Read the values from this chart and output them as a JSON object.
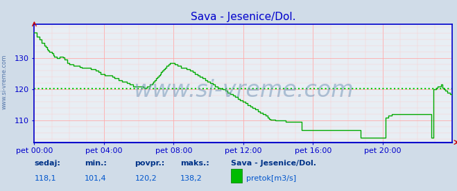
{
  "title": "Sava - Jesenice/Dol.",
  "title_color": "#0000cc",
  "title_fontsize": 11,
  "bg_color": "#d0dce8",
  "plot_bg_color": "#e8eef4",
  "grid_color_major": "#ffaaaa",
  "grid_color_minor": "#ffcccc",
  "line_color": "#00aa00",
  "line_width": 1.0,
  "avg_line_color": "#00cc00",
  "avg_value": 120.2,
  "ylim": [
    103,
    141
  ],
  "yticks": [
    110,
    120,
    130
  ],
  "ylabel_fontsize": 8,
  "xlabel_fontsize": 8,
  "xtick_labels": [
    "pet 00:00",
    "pet 04:00",
    "pet 08:00",
    "pet 12:00",
    "pet 16:00",
    "pet 20:00"
  ],
  "axis_color": "#0000cc",
  "watermark": "www.si-vreme.com",
  "watermark_color": "#7799bb",
  "watermark_alpha": 0.55,
  "watermark_fontsize": 24,
  "footer_labels": [
    "sedaj:",
    "min.:",
    "povpr.:",
    "maks.:"
  ],
  "footer_values": [
    "118,1",
    "101,4",
    "120,2",
    "138,2"
  ],
  "footer_station": "Sava - Jesenice/Dol.",
  "footer_legend_label": "pretok[m3/s]",
  "footer_color": "#0055cc",
  "footer_label_color": "#003388",
  "legend_color": "#00bb00",
  "sidebar_text": "www.si-vreme.com",
  "sidebar_color": "#5577aa",
  "sidebar_fontsize": 6,
  "flow_data": [
    138.2,
    138.2,
    137.0,
    137.0,
    136.0,
    136.0,
    135.0,
    135.0,
    134.0,
    133.5,
    133.0,
    132.5,
    132.0,
    132.0,
    131.5,
    131.0,
    130.5,
    130.5,
    130.0,
    130.0,
    130.5,
    130.5,
    130.5,
    130.2,
    129.5,
    129.5,
    128.5,
    128.5,
    128.0,
    128.0,
    128.0,
    127.5,
    127.5,
    127.5,
    127.5,
    127.5,
    127.2,
    127.2,
    127.0,
    127.0,
    127.0,
    127.0,
    127.0,
    127.0,
    127.0,
    126.5,
    126.5,
    126.5,
    126.5,
    126.0,
    126.0,
    125.5,
    125.5,
    125.0,
    125.0,
    125.0,
    124.5,
    124.5,
    124.5,
    124.5,
    124.5,
    124.5,
    124.0,
    124.0,
    123.5,
    123.5,
    123.5,
    123.0,
    123.0,
    123.0,
    122.5,
    122.5,
    122.5,
    122.5,
    122.0,
    122.0,
    121.5,
    121.5,
    121.5,
    121.0,
    121.0,
    121.0,
    121.0,
    121.0,
    121.0,
    121.0,
    121.0,
    120.5,
    120.5,
    120.5,
    121.0,
    121.0,
    121.5,
    121.5,
    122.0,
    122.5,
    123.0,
    123.5,
    124.0,
    124.5,
    125.0,
    125.5,
    126.0,
    126.5,
    127.0,
    127.5,
    127.5,
    128.0,
    128.5,
    128.5,
    128.5,
    128.5,
    128.0,
    128.0,
    127.5,
    127.5,
    127.5,
    127.0,
    127.0,
    127.0,
    127.0,
    126.5,
    126.5,
    126.5,
    126.0,
    126.0,
    125.5,
    125.5,
    125.0,
    125.0,
    124.5,
    124.5,
    124.0,
    124.0,
    123.5,
    123.5,
    123.0,
    123.0,
    122.5,
    122.5,
    122.0,
    122.0,
    121.5,
    121.5,
    121.0,
    121.0,
    120.5,
    120.5,
    120.2,
    120.2,
    120.0,
    120.0,
    119.5,
    119.5,
    119.0,
    119.0,
    118.5,
    118.5,
    118.0,
    118.0,
    117.5,
    117.5,
    117.0,
    117.0,
    116.5,
    116.5,
    116.0,
    116.0,
    115.5,
    115.5,
    115.0,
    115.0,
    114.5,
    114.5,
    114.0,
    114.0,
    113.5,
    113.5,
    113.0,
    113.0,
    112.5,
    112.5,
    112.0,
    112.0,
    111.5,
    111.5,
    111.0,
    110.5,
    110.2,
    110.2,
    110.2,
    110.2,
    110.0,
    110.0,
    110.0,
    110.0,
    110.0,
    110.0,
    110.0,
    110.0,
    109.5,
    109.5,
    109.5,
    109.5,
    109.5,
    109.5,
    109.5,
    109.5,
    109.5,
    109.5,
    109.5,
    109.5,
    109.5,
    107.0,
    107.0,
    107.0,
    107.0,
    107.0,
    107.0,
    107.0,
    107.0,
    107.0,
    107.0,
    107.0,
    107.0,
    107.0,
    107.0,
    107.0,
    107.0,
    107.0,
    107.0,
    107.0,
    107.0,
    107.0,
    107.0,
    107.0,
    107.0,
    107.0,
    107.0,
    107.0,
    107.0,
    107.0,
    107.0,
    107.0,
    107.0,
    107.0,
    107.0,
    107.0,
    107.0,
    107.0,
    107.0,
    107.0,
    107.0,
    107.0,
    107.0,
    107.0,
    107.0,
    107.0,
    107.0,
    107.0,
    104.5,
    104.5,
    104.5,
    104.5,
    104.5,
    104.5,
    104.5,
    104.5,
    104.5,
    104.5,
    104.5,
    104.5,
    104.5,
    104.5,
    104.5,
    104.5,
    104.5,
    104.5,
    104.5,
    104.5,
    111.0,
    111.0,
    111.5,
    111.5,
    111.5,
    112.0,
    112.0,
    112.0,
    112.0,
    112.0,
    112.0,
    112.0,
    112.0,
    112.0,
    112.0,
    112.0,
    112.0,
    112.0,
    112.0,
    112.0,
    112.0,
    112.0,
    112.0,
    112.0,
    112.0,
    112.0,
    112.0,
    112.0,
    112.0,
    112.0,
    112.0,
    112.0,
    112.0,
    112.0,
    112.0,
    112.0,
    104.5,
    104.5,
    120.0,
    120.0,
    120.5,
    121.0,
    121.0,
    121.0,
    121.5,
    120.5,
    120.0,
    119.5,
    119.5,
    119.0,
    119.0,
    118.5,
    118.5,
    118.1
  ]
}
